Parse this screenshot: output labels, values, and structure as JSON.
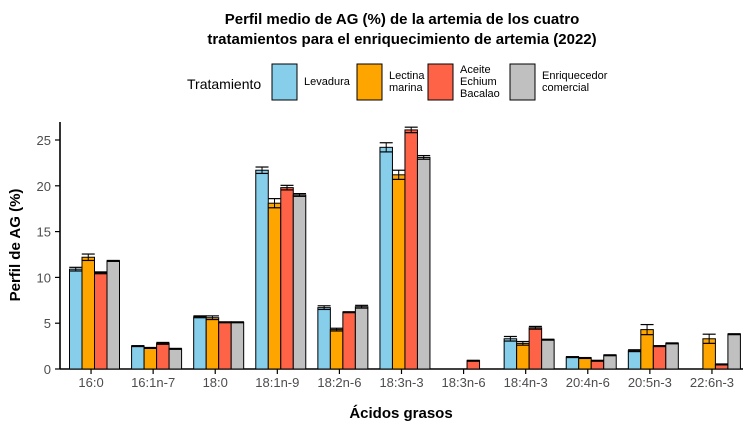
{
  "chart_data": {
    "type": "bar",
    "title_line1": "Perfil medio de AG (%) de la artemia de los cuatro",
    "title_line2": "tratamientos para el enriquecimiento de artemia (2022)",
    "xlabel": "Ácidos grasos",
    "ylabel": "Perfil de AG (%)",
    "ylim": [
      0,
      27
    ],
    "yticks": [
      0,
      5,
      10,
      15,
      20,
      25
    ],
    "grid": false,
    "legend_position": "top",
    "legend_title": "Tratamiento",
    "categories": [
      "16:0",
      "16:1n-7",
      "18:0",
      "18:1n-9",
      "18:2n-6",
      "18:3n-3",
      "18:3n-6",
      "18:4n-3",
      "20:4n-6",
      "20:5n-3",
      "22:6n-3"
    ],
    "series": [
      {
        "name_lines": [
          "Levadura"
        ],
        "color": "#87CEEB",
        "values": [
          10.9,
          2.5,
          5.7,
          21.7,
          6.7,
          24.2,
          0,
          3.3,
          1.3,
          2.0,
          0
        ],
        "errors": [
          0.2,
          0.05,
          0.1,
          0.35,
          0.2,
          0.5,
          0,
          0.25,
          0.05,
          0.1,
          0
        ]
      },
      {
        "name_lines": [
          "Lectina",
          "marina"
        ],
        "color": "#FFA500",
        "values": [
          12.2,
          2.3,
          5.6,
          18.1,
          4.3,
          21.2,
          0,
          2.8,
          1.2,
          4.3,
          3.3
        ],
        "errors": [
          0.35,
          0.05,
          0.2,
          0.5,
          0.15,
          0.5,
          0,
          0.2,
          0.05,
          0.55,
          0.5
        ]
      },
      {
        "name_lines": [
          "Aceite",
          "Echium",
          "Bacalao"
        ],
        "color": "#FF6347",
        "values": [
          10.5,
          2.8,
          5.1,
          19.8,
          6.2,
          26.1,
          0.9,
          4.5,
          0.9,
          2.5,
          0.5
        ],
        "errors": [
          0.1,
          0.1,
          0.05,
          0.25,
          0.05,
          0.3,
          0.05,
          0.15,
          0.05,
          0.05,
          0.05
        ]
      },
      {
        "name_lines": [
          "Enriquecedor",
          "comercial"
        ],
        "color": "#C0C0C0",
        "values": [
          11.8,
          2.2,
          5.1,
          19.0,
          6.8,
          23.1,
          0,
          3.2,
          1.5,
          2.8,
          3.8
        ],
        "errors": [
          0.05,
          0.05,
          0.05,
          0.15,
          0.15,
          0.2,
          0,
          0.05,
          0.05,
          0.05,
          0.05
        ]
      }
    ]
  }
}
